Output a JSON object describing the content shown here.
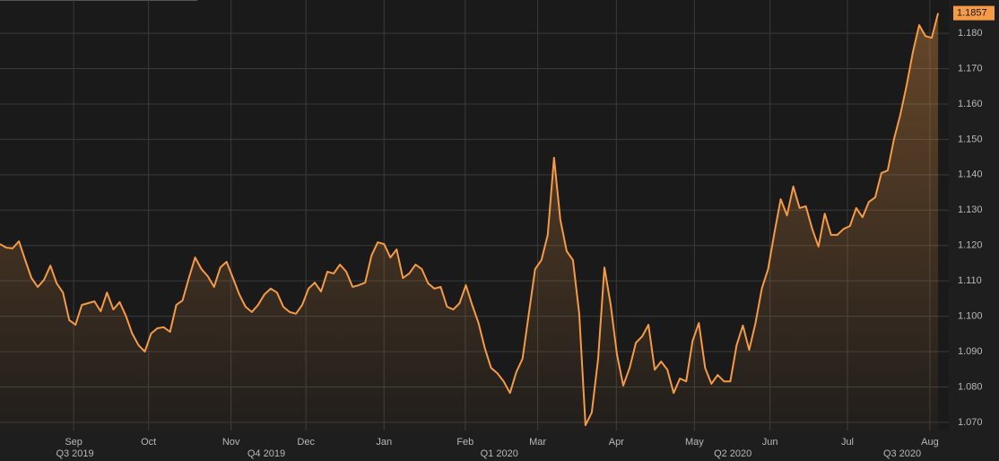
{
  "chart_data": {
    "type": "area-line",
    "color": "#f59a45",
    "values": [
      1.1204,
      1.1194,
      1.1192,
      1.1212,
      1.1159,
      1.1108,
      1.1083,
      1.1103,
      1.1143,
      1.1093,
      1.1067,
      1.0989,
      1.0976,
      1.1032,
      1.1037,
      1.1042,
      1.1014,
      1.1067,
      1.1019,
      1.104,
      1.1001,
      1.0951,
      1.0918,
      1.09,
      1.0951,
      1.0966,
      1.0969,
      1.0956,
      1.1032,
      1.1045,
      1.1108,
      1.1166,
      1.1133,
      1.1113,
      1.1083,
      1.1138,
      1.1154,
      1.1108,
      1.1062,
      1.1027,
      1.1012,
      1.1032,
      1.1062,
      1.1078,
      1.1067,
      1.1027,
      1.1012,
      1.1007,
      1.1032,
      1.1078,
      1.1095,
      1.107,
      1.1126,
      1.1121,
      1.1146,
      1.1126,
      1.1083,
      1.1088,
      1.1095,
      1.1171,
      1.1209,
      1.1204,
      1.1166,
      1.1189,
      1.1108,
      1.1121,
      1.1146,
      1.1133,
      1.1093,
      1.1078,
      1.1083,
      1.1027,
      1.1019,
      1.1037,
      1.1088,
      1.1032,
      1.0981,
      1.091,
      1.0854,
      1.0839,
      1.0816,
      1.0783,
      1.0842,
      1.088,
      1.1007,
      1.1133,
      1.1159,
      1.123,
      1.1448,
      1.1273,
      1.1184,
      1.1159,
      1.1007,
      1.0692,
      1.0728,
      1.088,
      1.1138,
      1.1032,
      1.0892,
      1.0804,
      1.0854,
      1.0925,
      1.0943,
      1.0976,
      1.0849,
      1.0872,
      1.0849,
      1.0783,
      1.0824,
      1.0816,
      1.093,
      1.0981,
      1.0854,
      1.0809,
      1.0834,
      1.0816,
      1.0816,
      1.0918,
      1.0974,
      1.0905,
      1.0981,
      1.1078,
      1.1133,
      1.1235,
      1.1331,
      1.1285,
      1.1367,
      1.1306,
      1.1311,
      1.1247,
      1.1197,
      1.129,
      1.123,
      1.123,
      1.1247,
      1.1255,
      1.1306,
      1.128,
      1.1323,
      1.1336,
      1.1405,
      1.1412,
      1.1501,
      1.1569,
      1.1653,
      1.1747,
      1.1823,
      1.1792,
      1.1787,
      1.1857
    ],
    "xlim": [
      0,
      150.7
    ],
    "ylim": [
      1.0677,
      1.1894
    ],
    "yticks": [
      {
        "value": 1.07,
        "label": "1.070"
      },
      {
        "value": 1.08,
        "label": "1.080"
      },
      {
        "value": 1.09,
        "label": "1.090"
      },
      {
        "value": 1.1,
        "label": "1.100"
      },
      {
        "value": 1.11,
        "label": "1.110"
      },
      {
        "value": 1.12,
        "label": "1.120"
      },
      {
        "value": 1.13,
        "label": "1.130"
      },
      {
        "value": 1.14,
        "label": "1.140"
      },
      {
        "value": 1.15,
        "label": "1.150"
      },
      {
        "value": 1.16,
        "label": "1.160"
      },
      {
        "value": 1.17,
        "label": "1.170"
      },
      {
        "value": 1.18,
        "label": "1.180"
      }
    ],
    "xticks": [
      {
        "value": 11.7,
        "label": "Sep"
      },
      {
        "value": 23.6,
        "label": "Oct"
      },
      {
        "value": 36.7,
        "label": "Nov"
      },
      {
        "value": 48.6,
        "label": "Dec"
      },
      {
        "value": 61,
        "label": "Jan"
      },
      {
        "value": 73.9,
        "label": "Feb"
      },
      {
        "value": 85.4,
        "label": "Mar"
      },
      {
        "value": 97.9,
        "label": "Apr"
      },
      {
        "value": 110.3,
        "label": "May"
      },
      {
        "value": 122.3,
        "label": "Jun"
      },
      {
        "value": 134.6,
        "label": "Jul"
      },
      {
        "value": 147.7,
        "label": "Aug"
      }
    ],
    "xticks_secondary": [
      {
        "value": 11.9,
        "label": "Q3 2019"
      },
      {
        "value": 42.3,
        "label": "Q4 2019"
      },
      {
        "value": 79.3,
        "label": "Q1 2020"
      },
      {
        "value": 116.4,
        "label": "Q2 2020"
      },
      {
        "value": 143.3,
        "label": "Q3 2020"
      }
    ],
    "grid": true
  }
}
